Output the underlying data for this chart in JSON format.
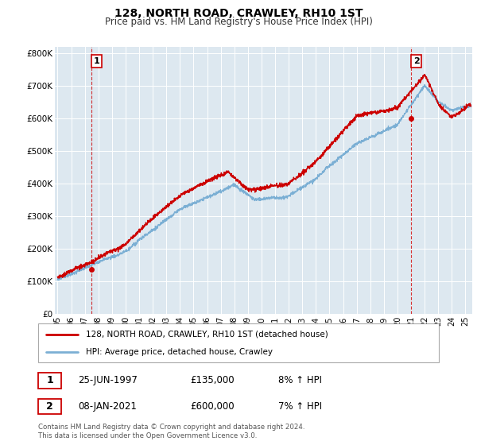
{
  "title": "128, NORTH ROAD, CRAWLEY, RH10 1ST",
  "subtitle": "Price paid vs. HM Land Registry's House Price Index (HPI)",
  "ylabel_ticks": [
    "£0",
    "£100K",
    "£200K",
    "£300K",
    "£400K",
    "£500K",
    "£600K",
    "£700K",
    "£800K"
  ],
  "ytick_vals": [
    0,
    100000,
    200000,
    300000,
    400000,
    500000,
    600000,
    700000,
    800000
  ],
  "ylim": [
    0,
    820000
  ],
  "xlim_start": 1994.8,
  "xlim_end": 2025.5,
  "xtick_years": [
    1995,
    1996,
    1997,
    1998,
    1999,
    2000,
    2001,
    2002,
    2003,
    2004,
    2005,
    2006,
    2007,
    2008,
    2009,
    2010,
    2011,
    2012,
    2013,
    2014,
    2015,
    2016,
    2017,
    2018,
    2019,
    2020,
    2021,
    2022,
    2023,
    2024,
    2025
  ],
  "property_color": "#cc0000",
  "hpi_color": "#7bafd4",
  "marker_color": "#cc0000",
  "plot_bg_color": "#dde8f0",
  "transaction1_x": 1997.48,
  "transaction1_y": 135000,
  "transaction2_x": 2021.02,
  "transaction2_y": 600000,
  "legend_property": "128, NORTH ROAD, CRAWLEY, RH10 1ST (detached house)",
  "legend_hpi": "HPI: Average price, detached house, Crawley",
  "t1_date": "25-JUN-1997",
  "t1_price": "£135,000",
  "t1_hpi": "8% ↑ HPI",
  "t2_date": "08-JAN-2021",
  "t2_price": "£600,000",
  "t2_hpi": "7% ↑ HPI",
  "footer": "Contains HM Land Registry data © Crown copyright and database right 2024.\nThis data is licensed under the Open Government Licence v3.0.",
  "background_color": "#ffffff",
  "grid_color": "#ffffff"
}
